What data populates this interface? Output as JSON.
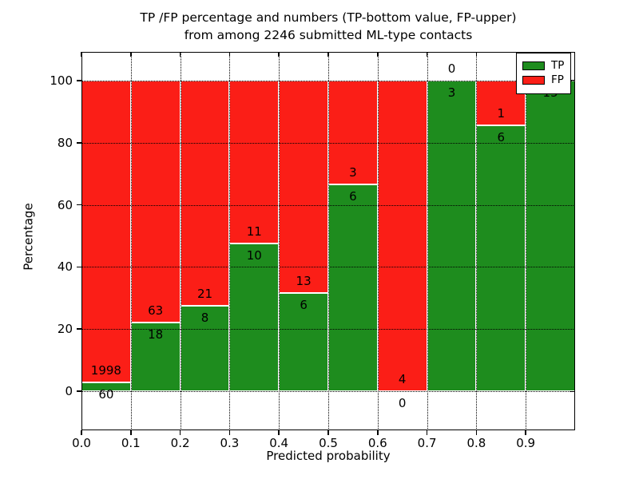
{
  "title": {
    "line1": "TP /FP percentage and numbers (TP-bottom value, FP-upper)",
    "line2": "from among 2246 submitted ML-type contacts"
  },
  "axes": {
    "xlabel": "Predicted probability",
    "ylabel": "Percentage",
    "yticks": [
      0,
      20,
      40,
      60,
      80,
      100
    ],
    "xticks": [
      "0.0",
      "0.1",
      "0.2",
      "0.3",
      "0.4",
      "0.5",
      "0.6",
      "0.7",
      "0.8",
      "0.9"
    ]
  },
  "legend": {
    "items": [
      {
        "label": "TP",
        "color": "#1e8c1e"
      },
      {
        "label": "FP",
        "color": "#fb1e17"
      }
    ]
  },
  "colors": {
    "tp": "#1e8c1e",
    "fp": "#fb1e17",
    "grid": "#000000",
    "background": "#ffffff",
    "bar_edge": "#ffffff"
  },
  "chart_data": {
    "type": "bar",
    "stacked": true,
    "normalized_to_percent": true,
    "title": "TP /FP percentage and numbers (TP-bottom value, FP-upper) from among 2246 submitted ML-type contacts",
    "xlabel": "Predicted probability",
    "ylabel": "Percentage",
    "total_contacts": 2246,
    "x_bin_edges": [
      0.0,
      0.1,
      0.2,
      0.3,
      0.4,
      0.5,
      0.6,
      0.7,
      0.8,
      0.9,
      1.0
    ],
    "bin_labels": [
      "0.0-0.1",
      "0.1-0.2",
      "0.2-0.3",
      "0.3-0.4",
      "0.4-0.5",
      "0.5-0.6",
      "0.6-0.7",
      "0.7-0.8",
      "0.8-0.9",
      "0.9-1.0"
    ],
    "series": [
      {
        "name": "TP",
        "position": "bottom",
        "color": "#1e8c1e",
        "counts": [
          60,
          18,
          8,
          10,
          6,
          6,
          0,
          3,
          6,
          15
        ]
      },
      {
        "name": "FP",
        "position": "top",
        "color": "#fb1e17",
        "counts": [
          1998,
          63,
          21,
          11,
          13,
          3,
          4,
          0,
          1,
          0
        ]
      }
    ],
    "tp_percent": [
      2.9,
      22.2,
      27.6,
      47.6,
      31.6,
      66.7,
      0.0,
      100.0,
      85.7,
      100.0
    ],
    "ylim": [
      -12.6,
      109.3
    ],
    "yticks": [
      0,
      20,
      40,
      60,
      80,
      100
    ],
    "grid": true,
    "legend_position": "upper right"
  }
}
